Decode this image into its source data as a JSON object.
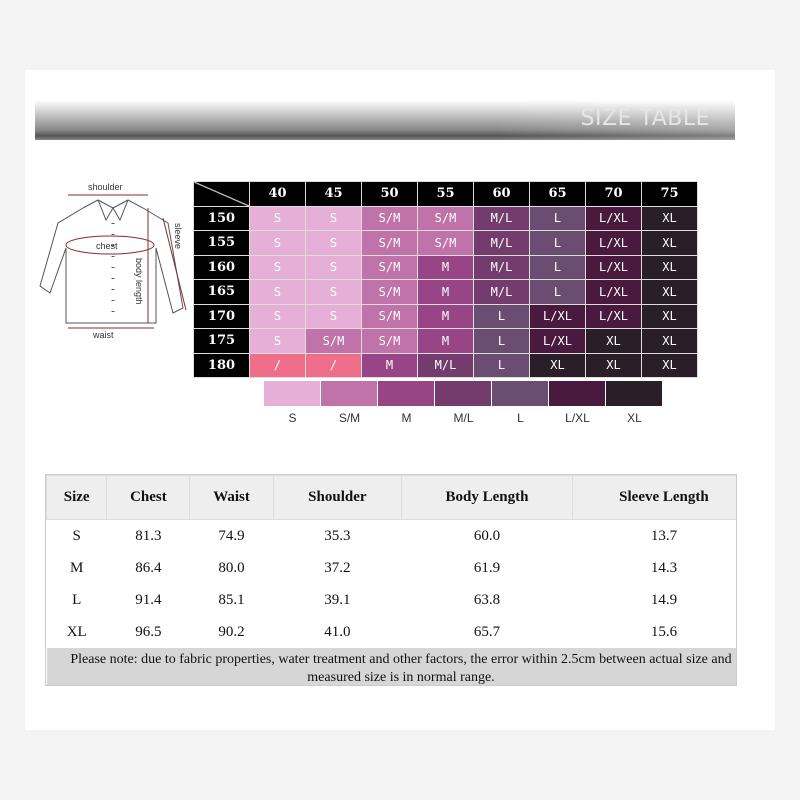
{
  "banner": {
    "title": "SIZE TABLE"
  },
  "diagram": {
    "labels": {
      "shoulder": "shoulder",
      "chest": "chest",
      "sleeve": "sleeve",
      "body_length": "body length",
      "waist": "waist"
    }
  },
  "grid": {
    "weights": [
      "40",
      "45",
      "50",
      "55",
      "60",
      "65",
      "70",
      "75"
    ],
    "rows": [
      {
        "height": "150",
        "sizes": [
          "S",
          "S",
          "S/M",
          "S/M",
          "M/L",
          "L",
          "L/XL",
          "XL"
        ]
      },
      {
        "height": "155",
        "sizes": [
          "S",
          "S",
          "S/M",
          "S/M",
          "M/L",
          "L",
          "L/XL",
          "XL"
        ]
      },
      {
        "height": "160",
        "sizes": [
          "S",
          "S",
          "S/M",
          "M",
          "M/L",
          "L",
          "L/XL",
          "XL"
        ]
      },
      {
        "height": "165",
        "sizes": [
          "S",
          "S",
          "S/M",
          "M",
          "M/L",
          "L",
          "L/XL",
          "XL"
        ]
      },
      {
        "height": "170",
        "sizes": [
          "S",
          "S",
          "S/M",
          "M",
          "L",
          "L/XL",
          "L/XL",
          "XL"
        ]
      },
      {
        "height": "175",
        "sizes": [
          "S",
          "S/M",
          "S/M",
          "M",
          "L",
          "L/XL",
          "XL",
          "XL"
        ]
      },
      {
        "height": "180",
        "sizes": [
          "/",
          "/",
          "M",
          "M/L",
          "L",
          "XL",
          "XL",
          "XL"
        ]
      }
    ]
  },
  "legend": [
    {
      "label": "S",
      "color": "#e6afd8"
    },
    {
      "label": "S/M",
      "color": "#c073a8"
    },
    {
      "label": "M",
      "color": "#974585"
    },
    {
      "label": "M/L",
      "color": "#743c6c"
    },
    {
      "label": "L",
      "color": "#6c4d72"
    },
    {
      "label": "L/XL",
      "color": "#4a1a3e"
    },
    {
      "label": "XL",
      "color": "#2a1e28"
    }
  ],
  "na_color": "#ef6e89",
  "measure_table": {
    "headers": [
      "Size",
      "Chest",
      "Waist",
      "Shoulder",
      "Body Length",
      "Sleeve Length"
    ],
    "rows": [
      [
        "S",
        "81.3",
        "74.9",
        "35.3",
        "60.0",
        "13.7"
      ],
      [
        "M",
        "86.4",
        "80.0",
        "37.2",
        "61.9",
        "14.3"
      ],
      [
        "L",
        "91.4",
        "85.1",
        "39.1",
        "63.8",
        "14.9"
      ],
      [
        "XL",
        "96.5",
        "90.2",
        "41.0",
        "65.7",
        "15.6"
      ]
    ],
    "note": "Please note: due to fabric properties, water treatment and other factors, the error within 2.5cm between actual size and measured size is in normal range."
  }
}
